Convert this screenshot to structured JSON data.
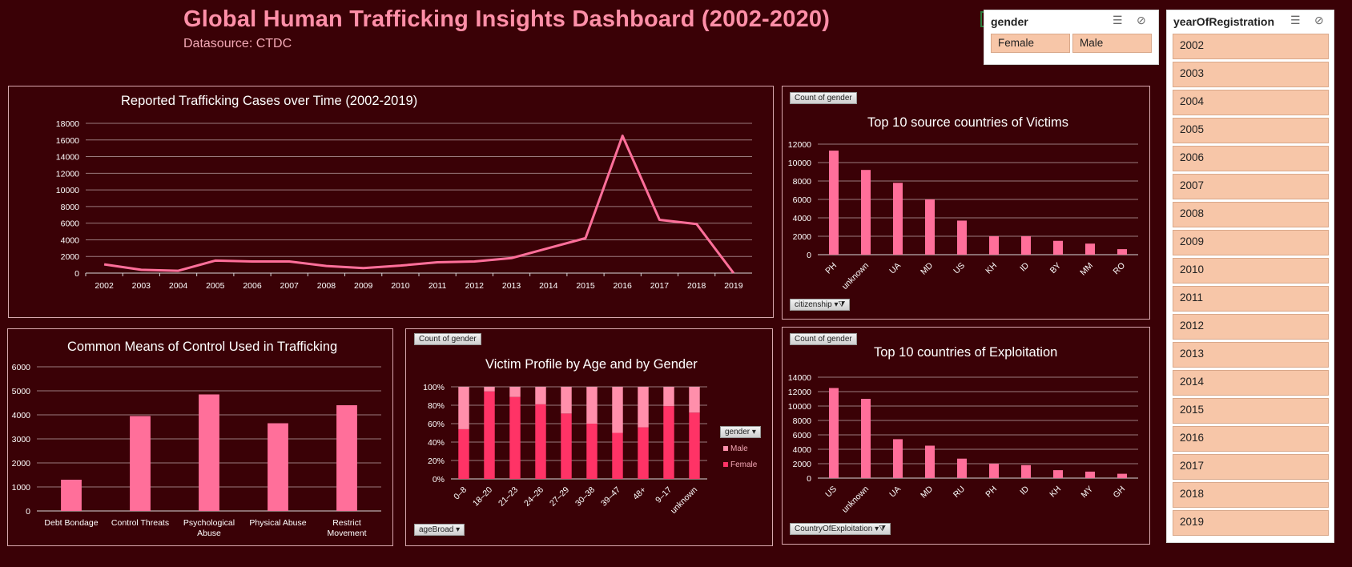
{
  "header": {
    "title": "Global Human Trafficking Insights Dashboard (2002-2020)",
    "subtitle": "Datasource: CTDC"
  },
  "colors": {
    "background": "#3a0106",
    "bar": "#ff6f9a",
    "female": "#ff3366",
    "male": "#ff8fab",
    "slicer_item": "#f7c6a8"
  },
  "slicers": {
    "gender": {
      "header": "gender",
      "items": [
        "Female",
        "Male"
      ]
    },
    "year": {
      "header": "yearOfRegistration",
      "items": [
        "2002",
        "2003",
        "2004",
        "2005",
        "2006",
        "2007",
        "2008",
        "2009",
        "2010",
        "2011",
        "2012",
        "2013",
        "2014",
        "2015",
        "2016",
        "2017",
        "2018",
        "2019"
      ]
    }
  },
  "chart_data": [
    {
      "id": "cases_over_time",
      "type": "line",
      "title": "Reported Trafficking Cases over Time (2002-2019)",
      "categories": [
        "2002",
        "2003",
        "2004",
        "2005",
        "2006",
        "2007",
        "2008",
        "2009",
        "2010",
        "2011",
        "2012",
        "2013",
        "2014",
        "2015",
        "2016",
        "2017",
        "2018",
        "2019"
      ],
      "values": [
        1050,
        400,
        280,
        1500,
        1400,
        1400,
        850,
        600,
        900,
        1300,
        1400,
        1800,
        3000,
        4200,
        16500,
        6400,
        5900,
        0
      ],
      "yticks": [
        "0",
        "2000",
        "4000",
        "6000",
        "8000",
        "10000",
        "12000",
        "14000",
        "16000",
        "18000"
      ],
      "ylim": [
        0,
        18000
      ]
    },
    {
      "id": "source_countries",
      "type": "bar",
      "title": "Top 10 source countries of Victims",
      "field_button": "Count of gender",
      "axis_button": "citizenship",
      "categories": [
        "PH",
        "unknown",
        "UA",
        "MD",
        "US",
        "KH",
        "ID",
        "BY",
        "MM",
        "RO"
      ],
      "values": [
        11300,
        9200,
        7800,
        6000,
        3700,
        2000,
        2000,
        1500,
        1200,
        600
      ],
      "yticks": [
        "0",
        "2000",
        "4000",
        "6000",
        "8000",
        "10000",
        "12000"
      ],
      "ylim": [
        0,
        12000
      ]
    },
    {
      "id": "means_of_control",
      "type": "bar",
      "title": "Common Means of Control Used in Trafficking",
      "categories": [
        "Debt Bondage",
        "Control Threats",
        "Psychological Abuse",
        "Physical Abuse",
        "Restrict Movement"
      ],
      "category_lines": [
        [
          "Debt Bondage"
        ],
        [
          "Control Threats"
        ],
        [
          "Psychological",
          "Abuse"
        ],
        [
          "Physical Abuse"
        ],
        [
          "Restrict",
          "Movement"
        ]
      ],
      "values": [
        1300,
        3950,
        4850,
        3650,
        4400
      ],
      "yticks": [
        "0",
        "1000",
        "2000",
        "3000",
        "4000",
        "5000",
        "6000"
      ],
      "ylim": [
        0,
        6000
      ]
    },
    {
      "id": "age_gender",
      "type": "bar",
      "stacked": "percent",
      "title": "Victim Profile by Age and by Gender",
      "field_button": "Count of gender",
      "axis_button": "ageBroad",
      "legend_button": "gender",
      "categories": [
        "0–8",
        "18–20",
        "21–23",
        "24–26",
        "27–29",
        "30–38",
        "39–47",
        "48+",
        "9–17",
        "unknown"
      ],
      "series": [
        {
          "name": "Female",
          "values": [
            54,
            95,
            89,
            81,
            71,
            60,
            50,
            56,
            79,
            72
          ]
        },
        {
          "name": "Male",
          "values": [
            46,
            5,
            11,
            19,
            29,
            40,
            50,
            44,
            21,
            28
          ]
        }
      ],
      "legend_order": [
        "Male",
        "Female"
      ],
      "yticks": [
        "0%",
        "20%",
        "40%",
        "60%",
        "80%",
        "100%"
      ],
      "ylim": [
        0,
        100
      ]
    },
    {
      "id": "exploitation_countries",
      "type": "bar",
      "title": "Top 10 countries of Exploitation",
      "field_button": "Count of gender",
      "axis_button": "CountryOfExploitation",
      "categories": [
        "US",
        "unknown",
        "UA",
        "MD",
        "RU",
        "PH",
        "ID",
        "KH",
        "MY",
        "GH"
      ],
      "values": [
        12500,
        11000,
        5400,
        4500,
        2700,
        2000,
        1800,
        1100,
        900,
        600
      ],
      "yticks": [
        "0",
        "2000",
        "4000",
        "6000",
        "8000",
        "10000",
        "12000",
        "14000"
      ],
      "ylim": [
        0,
        14000
      ]
    }
  ]
}
